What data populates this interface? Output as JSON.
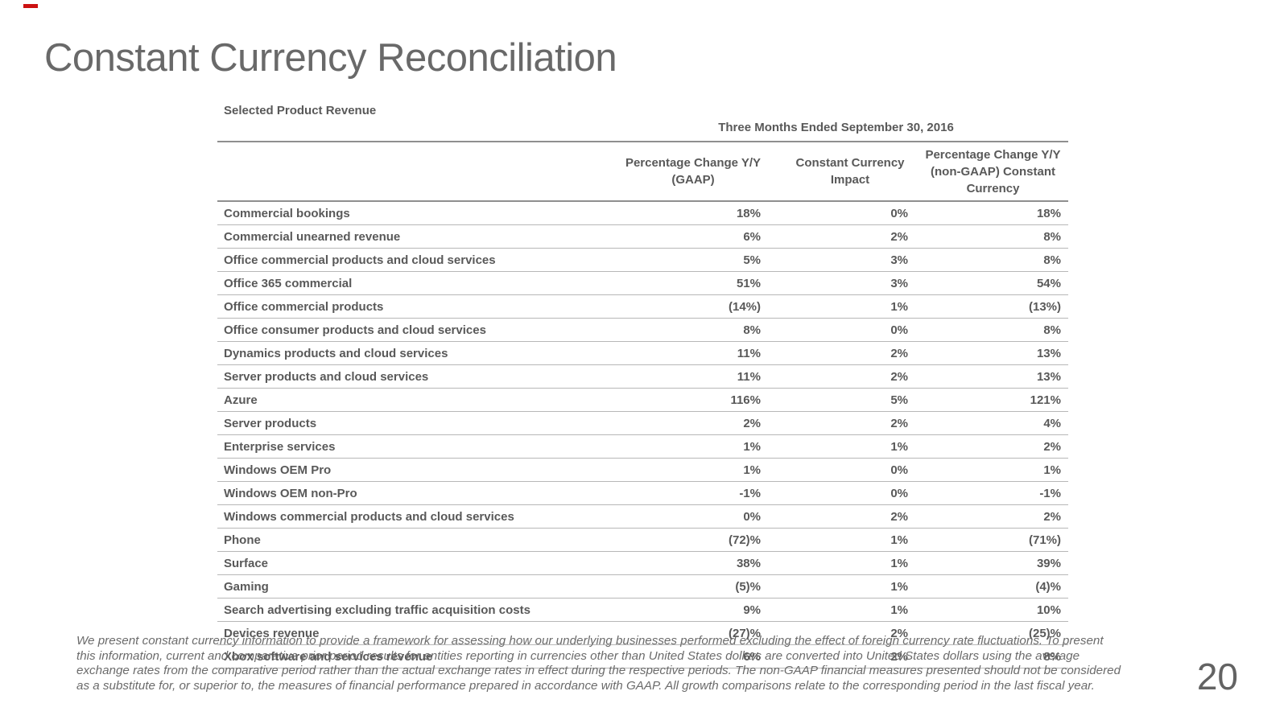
{
  "page": {
    "title": "Constant Currency Reconciliation",
    "page_number": "20"
  },
  "table": {
    "caption": "Selected Product Revenue",
    "period_header": "Three Months Ended September 30, 2016",
    "columns": [
      {
        "line1": "Percentage Change Y/Y",
        "line2": "(GAAP)",
        "line3": ""
      },
      {
        "line1": "Constant Currency",
        "line2": "Impact",
        "line3": ""
      },
      {
        "line1": "Percentage Change Y/Y",
        "line2": "(non-GAAP) Constant",
        "line3": "Currency"
      }
    ],
    "rows": [
      {
        "label": "Commercial bookings",
        "gaap": "18%",
        "impact": "0%",
        "constant": "18%"
      },
      {
        "label": "Commercial unearned revenue",
        "gaap": "6%",
        "impact": "2%",
        "constant": "8%"
      },
      {
        "label": "Office commercial products and cloud services",
        "gaap": "5%",
        "impact": "3%",
        "constant": "8%"
      },
      {
        "label": "Office 365 commercial",
        "gaap": "51%",
        "impact": "3%",
        "constant": "54%"
      },
      {
        "label": "Office commercial products",
        "gaap": "(14%)",
        "impact": "1%",
        "constant": "(13%)"
      },
      {
        "label": "Office consumer products and cloud services",
        "gaap": "8%",
        "impact": "0%",
        "constant": "8%"
      },
      {
        "label": "Dynamics products and cloud services",
        "gaap": "11%",
        "impact": "2%",
        "constant": "13%"
      },
      {
        "label": "Server products and cloud services",
        "gaap": "11%",
        "impact": "2%",
        "constant": "13%"
      },
      {
        "label": "Azure",
        "gaap": "116%",
        "impact": "5%",
        "constant": "121%"
      },
      {
        "label": "Server products",
        "gaap": "2%",
        "impact": "2%",
        "constant": "4%"
      },
      {
        "label": "Enterprise services",
        "gaap": "1%",
        "impact": "1%",
        "constant": "2%"
      },
      {
        "label": "Windows OEM Pro",
        "gaap": "1%",
        "impact": "0%",
        "constant": "1%"
      },
      {
        "label": "Windows OEM non-Pro",
        "gaap": "-1%",
        "impact": "0%",
        "constant": "-1%"
      },
      {
        "label": "Windows commercial products and cloud services",
        "gaap": "0%",
        "impact": "2%",
        "constant": "2%"
      },
      {
        "label": "Phone",
        "gaap": "(72)%",
        "impact": "1%",
        "constant": "(71%)"
      },
      {
        "label": "Surface",
        "gaap": "38%",
        "impact": "1%",
        "constant": "39%"
      },
      {
        "label": "Gaming",
        "gaap": "(5)%",
        "impact": "1%",
        "constant": "(4)%"
      },
      {
        "label": "Search advertising excluding traffic acquisition costs",
        "gaap": "9%",
        "impact": "1%",
        "constant": "10%"
      },
      {
        "label": "Devices revenue",
        "gaap": "(27)%",
        "impact": "2%",
        "constant": "(25)%"
      },
      {
        "label": "Xbox software and services revenue",
        "gaap": "6%",
        "impact": "2%",
        "constant": "8%"
      }
    ]
  },
  "footnote": {
    "lines": [
      "We present constant currency information to provide a framework for assessing how our underlying businesses performed excluding the effect of foreign currency rate fluctuations. To present",
      "this information, current and comparative prior period results for entities reporting in currencies other than United States dollars are converted into United States dollars using the average",
      "exchange rates from the comparative period rather than the actual exchange rates in effect during the respective periods. The non-GAAP financial measures presented should not be considered",
      "as a substitute for, or superior to, the measures of financial performance prepared in accordance with GAAP. All growth comparisons relate to the corresponding period in the last fiscal year."
    ]
  },
  "colors": {
    "title": "#696969",
    "table_text": "#595959",
    "rule_dark": "#8f8f8f",
    "rule_light": "#b7b7b7",
    "accent_red": "#cc1111"
  }
}
